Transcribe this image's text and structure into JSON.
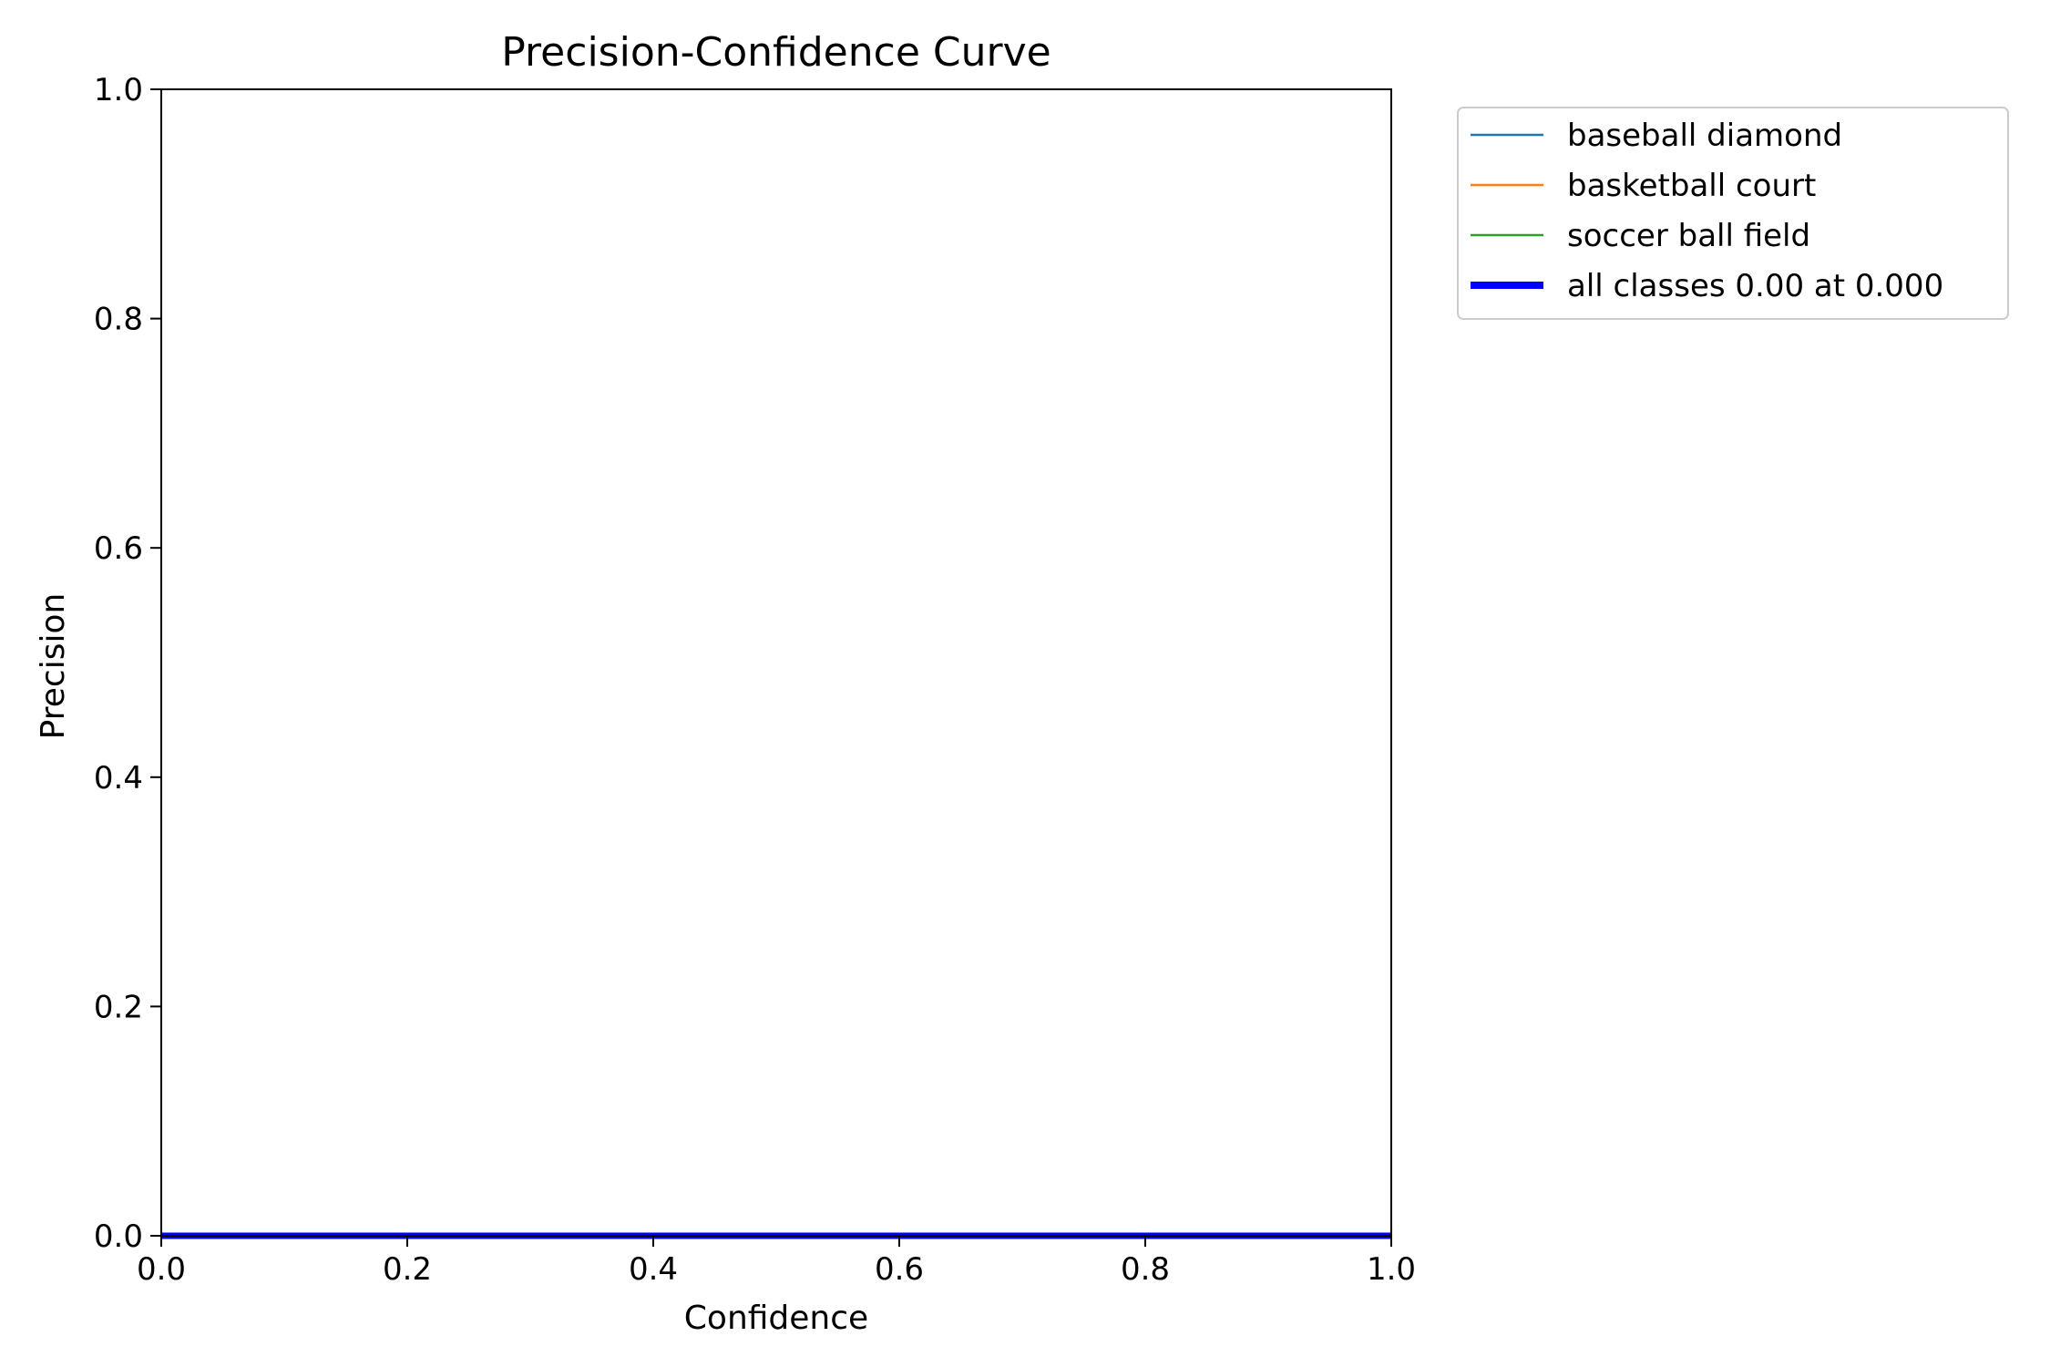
{
  "chart_data": {
    "type": "line",
    "title": "Precision-Confidence Curve",
    "xlabel": "Confidence",
    "ylabel": "Precision",
    "xlim": [
      0.0,
      1.0
    ],
    "ylim": [
      0.0,
      1.0
    ],
    "xticks": [
      0.0,
      0.2,
      0.4,
      0.6,
      0.8,
      1.0
    ],
    "yticks": [
      0.0,
      0.2,
      0.4,
      0.6,
      0.8,
      1.0
    ],
    "xtick_labels": [
      "0.0",
      "0.2",
      "0.4",
      "0.6",
      "0.8",
      "1.0"
    ],
    "ytick_labels": [
      "0.0",
      "0.2",
      "0.4",
      "0.6",
      "0.8",
      "1.0"
    ],
    "grid": false,
    "legend_position": "outside-top-right",
    "series": [
      {
        "name": "baseball diamond",
        "color": "#1f77b4",
        "x": [],
        "y": []
      },
      {
        "name": "basketball court",
        "color": "#ff7f0e",
        "x": [],
        "y": []
      },
      {
        "name": "soccer ball field",
        "color": "#2ca02c",
        "x": [],
        "y": []
      },
      {
        "name": "all classes 0.00 at 0.000",
        "color": "#0000ff",
        "bold": true,
        "x": [
          0.0,
          1.0
        ],
        "y": [
          0.0,
          0.0
        ]
      }
    ]
  }
}
